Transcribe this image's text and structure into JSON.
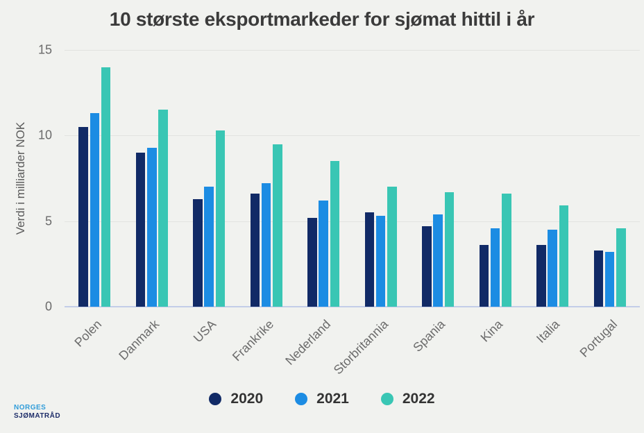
{
  "page": {
    "background": "#F1F2EF"
  },
  "chart_data": {
    "type": "bar",
    "title": "10 største eksportmarkeder for sjømat hittil i år",
    "xlabel": "",
    "ylabel": "Verdi i milliarder NOK",
    "ylim": [
      0,
      15
    ],
    "yticks": [
      0,
      5,
      10,
      15
    ],
    "grid": true,
    "legend_position": "bottom",
    "categories": [
      "Polen",
      "Danmark",
      "USA",
      "Frankrike",
      "Nederland",
      "Storbritannia",
      "Spania",
      "Kina",
      "Italia",
      "Portugal"
    ],
    "series": [
      {
        "name": "2020",
        "color": "#112A66",
        "values": [
          10.5,
          9.0,
          6.3,
          6.6,
          5.2,
          5.5,
          4.7,
          3.6,
          3.6,
          3.3
        ]
      },
      {
        "name": "2021",
        "color": "#1C8CE3",
        "values": [
          11.3,
          9.3,
          7.0,
          7.2,
          6.2,
          5.3,
          5.4,
          4.6,
          4.5,
          3.2
        ]
      },
      {
        "name": "2022",
        "color": "#39C6B4",
        "values": [
          14.0,
          11.5,
          10.3,
          9.5,
          8.5,
          7.0,
          6.7,
          6.6,
          5.9,
          4.6
        ]
      }
    ],
    "colors": {
      "gridline": "#E2E3E0",
      "baseline": "#C3CDE8",
      "title_text": "#3B3B3B",
      "axis_text": "#6B6B6B"
    }
  },
  "logo": {
    "line1": "NORGES",
    "line2": "SJØMATRÅD"
  }
}
